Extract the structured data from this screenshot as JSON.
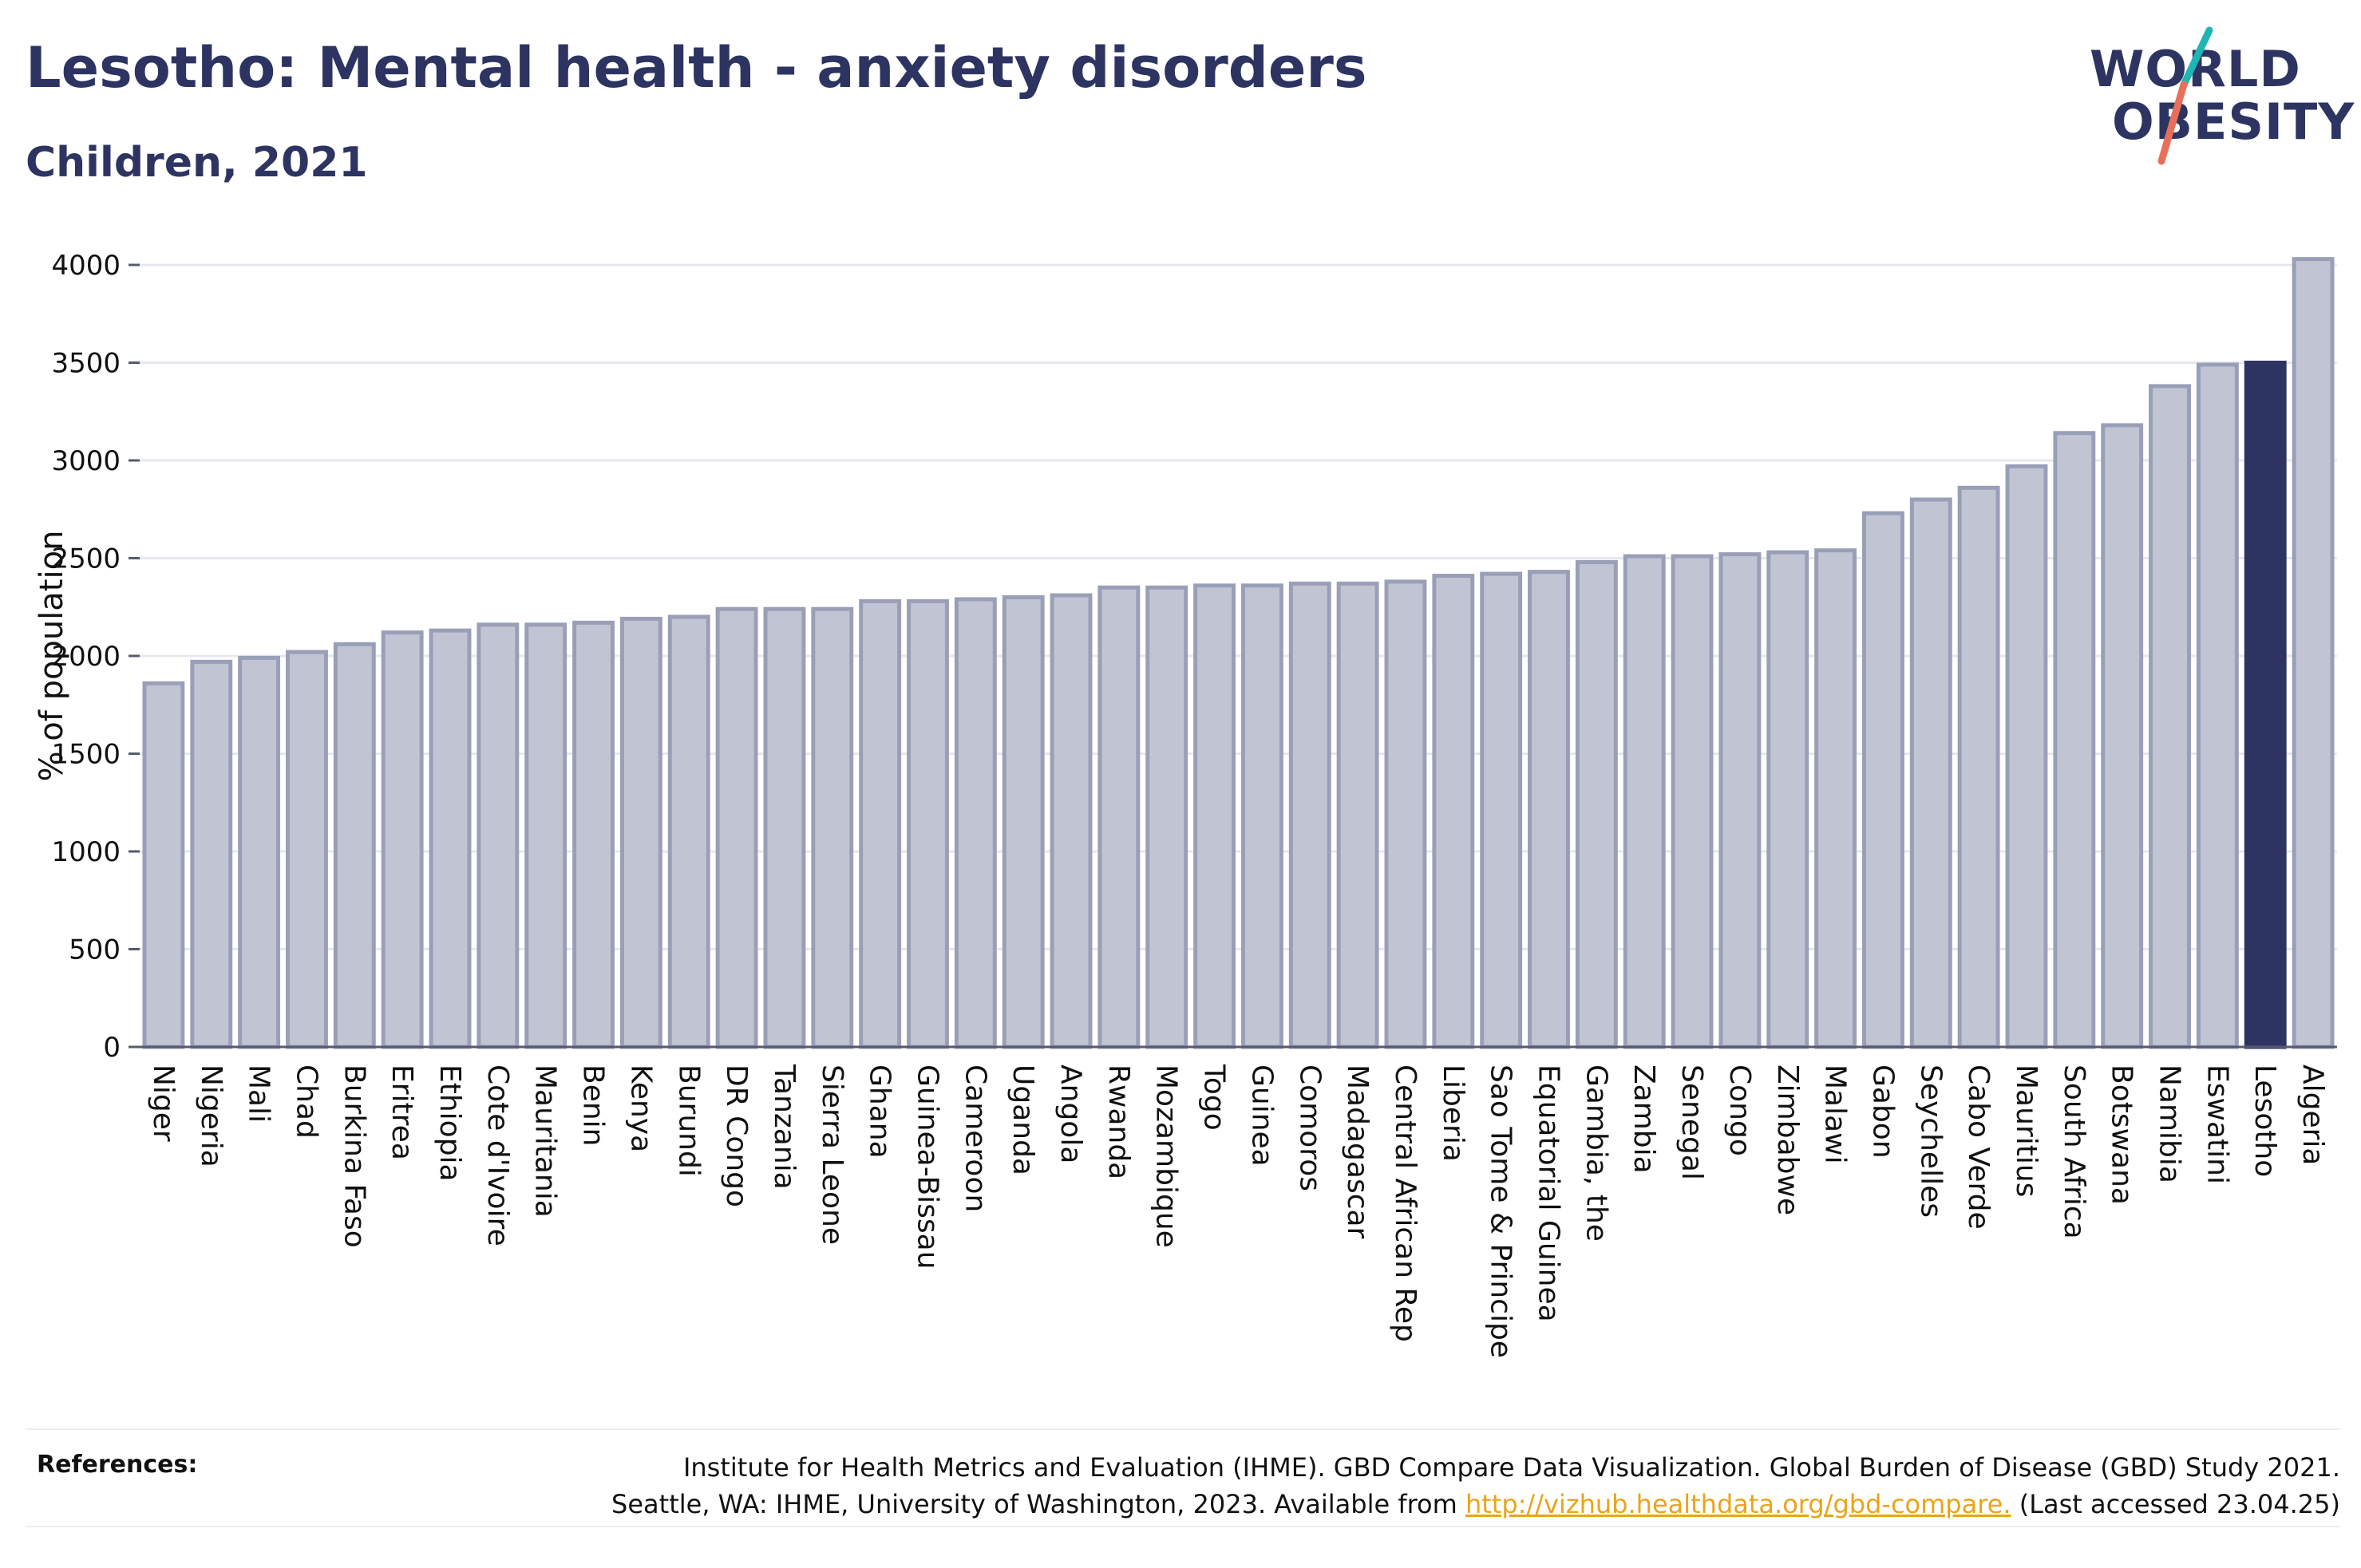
{
  "header": {
    "title": "Lesotho: Mental health - anxiety disorders",
    "subtitle": "Children, 2021"
  },
  "logo": {
    "line1": "WORLD",
    "line2": "OBESITY",
    "stroke_colors": [
      "#1fb5b5",
      "#e8705a"
    ]
  },
  "references": {
    "label": "References:",
    "line1": "Institute for Health Metrics and Evaluation (IHME). GBD Compare Data Visualization. Global Burden of Disease (GBD) Study 2021.",
    "line2_pre": "Seattle, WA: IHME, University of Washington, 2023. Available from",
    "link": "http://vizhub.healthdata.org/gbd-compare.",
    "line2_post": "(Last accessed 23.04.25)"
  },
  "colors": {
    "bar": "#c1c5d3",
    "bar_border": "#9a9fb8",
    "highlight": "#2d3461",
    "grid": "#e6e8ee",
    "axis": "#555a6e"
  },
  "chart_data": {
    "type": "bar",
    "title": "Lesotho: Mental health - anxiety disorders",
    "subtitle": "Children, 2021",
    "xlabel": "",
    "ylabel": "% of population",
    "ylim": [
      0,
      4000
    ],
    "yticks": [
      0,
      500,
      1000,
      1500,
      2000,
      2500,
      3000,
      3500,
      4000
    ],
    "grid": true,
    "highlight": "Lesotho",
    "categories": [
      "Niger",
      "Nigeria",
      "Mali",
      "Chad",
      "Burkina Faso",
      "Eritrea",
      "Ethiopia",
      "Cote d'Ivoire",
      "Mauritania",
      "Benin",
      "Kenya",
      "Burundi",
      "DR Congo",
      "Tanzania",
      "Sierra Leone",
      "Ghana",
      "Guinea-Bissau",
      "Cameroon",
      "Uganda",
      "Angola",
      "Rwanda",
      "Mozambique",
      "Togo",
      "Guinea",
      "Comoros",
      "Madagascar",
      "Central African Rep",
      "Liberia",
      "Sao Tome & Principe",
      "Equatorial Guinea",
      "Gambia, the",
      "Zambia",
      "Senegal",
      "Congo",
      "Zimbabwe",
      "Malawi",
      "Gabon",
      "Seychelles",
      "Cabo Verde",
      "Mauritius",
      "South Africa",
      "Botswana",
      "Namibia",
      "Eswatini",
      "Lesotho",
      "Algeria"
    ],
    "values": [
      1860,
      1970,
      1990,
      2020,
      2060,
      2120,
      2130,
      2160,
      2160,
      2170,
      2190,
      2200,
      2240,
      2240,
      2240,
      2280,
      2280,
      2290,
      2300,
      2310,
      2350,
      2350,
      2360,
      2360,
      2370,
      2370,
      2380,
      2410,
      2420,
      2430,
      2480,
      2510,
      2510,
      2520,
      2530,
      2540,
      2730,
      2800,
      2860,
      2970,
      3140,
      3180,
      3380,
      3490,
      3500,
      4030
    ]
  }
}
